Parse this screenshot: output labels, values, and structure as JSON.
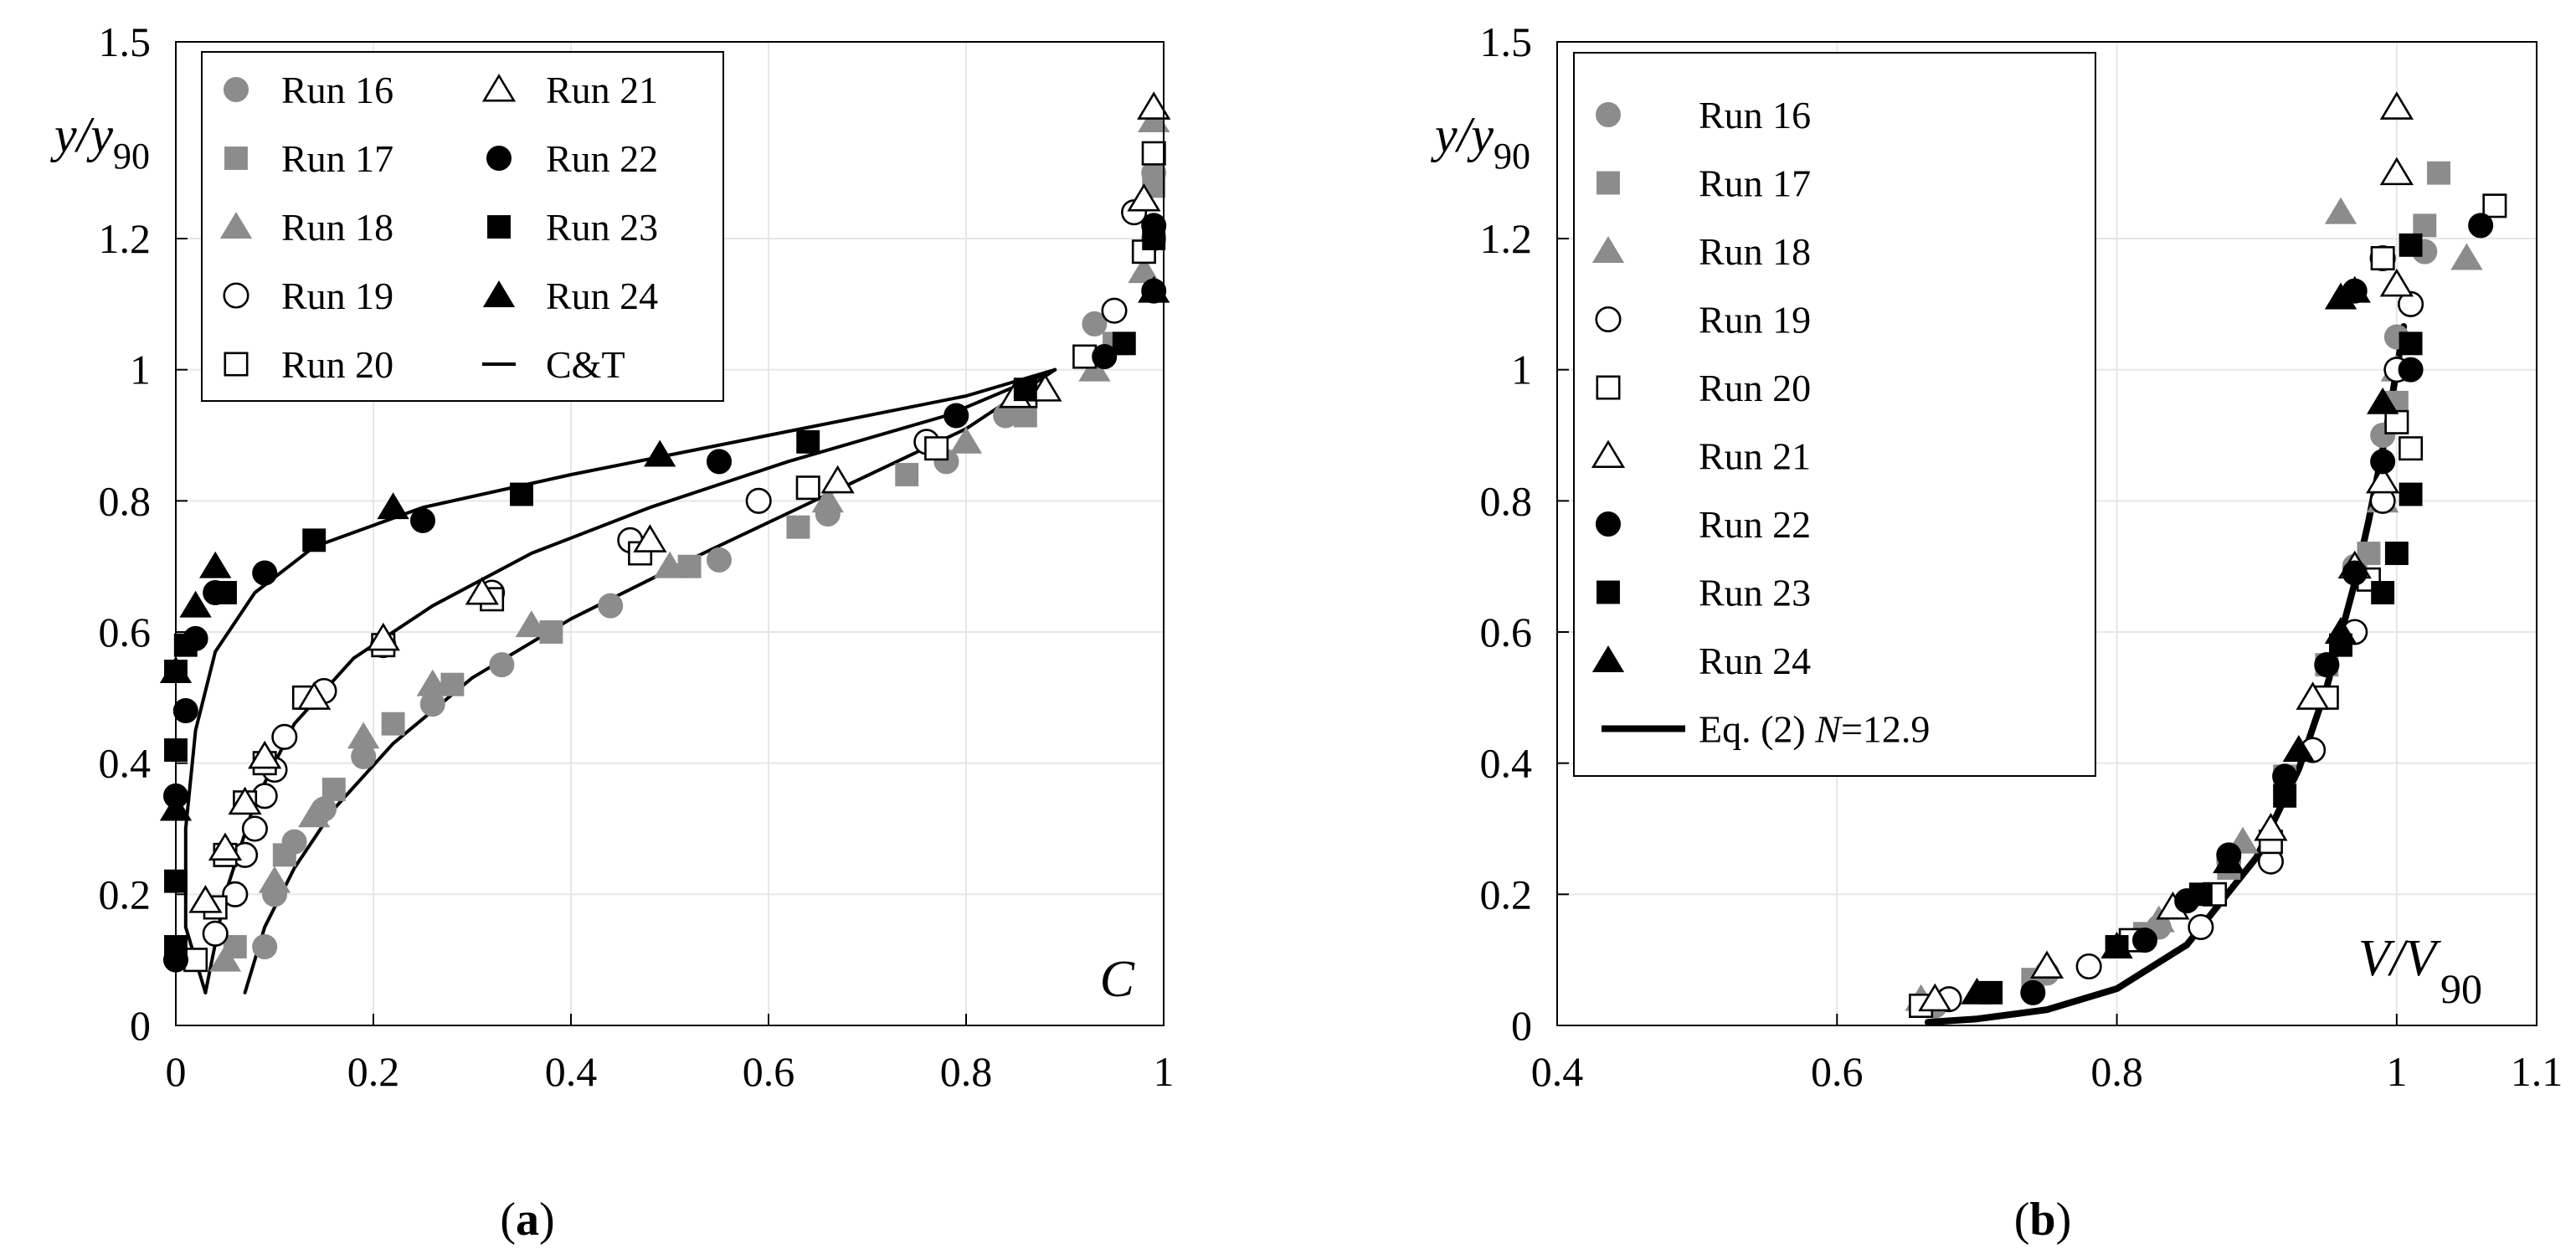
{
  "figure": {
    "panel_a_label": "a",
    "panel_b_label": "b"
  },
  "colors": {
    "gray": "#8c8c8c",
    "black": "#000000",
    "grid": "#e6e6e6"
  },
  "chart_data": [
    {
      "id": "a",
      "type": "scatter",
      "title": "",
      "xlabel": "C",
      "ylabel": "y/y90",
      "ylabel_parts": {
        "main": "y/y",
        "sub": "90"
      },
      "xlim": [
        0,
        1
      ],
      "ylim": [
        0,
        1.5
      ],
      "xticks": [
        0,
        0.2,
        0.4,
        0.6,
        0.8,
        1
      ],
      "xtick_labels": [
        "0",
        "0.2",
        "0.4",
        "0.6",
        "0.8",
        "1"
      ],
      "yticks": [
        0,
        0.2,
        0.4,
        0.6,
        0.8,
        1,
        1.2,
        1.5
      ],
      "ytick_labels": [
        "0",
        "0.2",
        "0.4",
        "0.6",
        "0.8",
        "1",
        "1.2",
        "1.5"
      ],
      "grid": true,
      "legend": {
        "position": "top-left",
        "columns": 2
      },
      "series": [
        {
          "name": "Run 16",
          "marker": "circle",
          "fill": "gray",
          "x": [
            0.09,
            0.1,
            0.12,
            0.15,
            0.19,
            0.26,
            0.33,
            0.44,
            0.55,
            0.66,
            0.78,
            0.84,
            0.93,
            0.99,
            0.99
          ],
          "y": [
            0.12,
            0.2,
            0.28,
            0.33,
            0.41,
            0.49,
            0.55,
            0.64,
            0.71,
            0.78,
            0.86,
            0.93,
            1.07,
            1.2,
            1.3
          ]
        },
        {
          "name": "Run 17",
          "marker": "square",
          "fill": "gray",
          "x": [
            0.06,
            0.11,
            0.16,
            0.22,
            0.28,
            0.38,
            0.52,
            0.63,
            0.74,
            0.86,
            0.95,
            0.99
          ],
          "y": [
            0.12,
            0.26,
            0.36,
            0.46,
            0.52,
            0.6,
            0.7,
            0.76,
            0.84,
            0.93,
            1.04,
            1.28
          ]
        },
        {
          "name": "Run 18",
          "marker": "triangle",
          "fill": "gray",
          "x": [
            0.05,
            0.1,
            0.14,
            0.19,
            0.26,
            0.36,
            0.5,
            0.66,
            0.8,
            0.93,
            0.98,
            0.99
          ],
          "y": [
            0.1,
            0.22,
            0.32,
            0.44,
            0.52,
            0.61,
            0.7,
            0.8,
            0.89,
            1.0,
            1.15,
            1.38
          ]
        },
        {
          "name": "Run 19",
          "marker": "circle",
          "fill": "none",
          "x": [
            0.04,
            0.06,
            0.07,
            0.08,
            0.09,
            0.1,
            0.11,
            0.15,
            0.21,
            0.32,
            0.46,
            0.59,
            0.76,
            0.95,
            0.97
          ],
          "y": [
            0.14,
            0.2,
            0.26,
            0.3,
            0.35,
            0.39,
            0.44,
            0.51,
            0.58,
            0.66,
            0.74,
            0.8,
            0.89,
            1.09,
            1.24
          ]
        },
        {
          "name": "Run 20",
          "marker": "square",
          "fill": "none",
          "x": [
            0.02,
            0.04,
            0.05,
            0.07,
            0.09,
            0.13,
            0.21,
            0.32,
            0.47,
            0.64,
            0.77,
            0.86,
            0.92,
            0.98,
            0.99
          ],
          "y": [
            0.1,
            0.18,
            0.26,
            0.34,
            0.4,
            0.5,
            0.58,
            0.65,
            0.72,
            0.82,
            0.88,
            0.96,
            1.02,
            1.18,
            1.33
          ]
        },
        {
          "name": "Run 21",
          "marker": "triangle",
          "fill": "none",
          "x": [
            0.03,
            0.05,
            0.07,
            0.09,
            0.14,
            0.21,
            0.31,
            0.48,
            0.67,
            0.85,
            0.88,
            0.98,
            0.99
          ],
          "y": [
            0.19,
            0.27,
            0.34,
            0.41,
            0.5,
            0.59,
            0.66,
            0.74,
            0.83,
            0.96,
            0.97,
            1.26,
            1.4
          ]
        },
        {
          "name": "Run 22",
          "marker": "circle",
          "fill": "black",
          "x": [
            0.0,
            0.0,
            0.01,
            0.02,
            0.04,
            0.09,
            0.25,
            0.55,
            0.79,
            0.94,
            0.99,
            0.99
          ],
          "y": [
            0.1,
            0.35,
            0.48,
            0.59,
            0.66,
            0.69,
            0.77,
            0.86,
            0.93,
            1.02,
            1.12,
            1.22
          ]
        },
        {
          "name": "Run 23",
          "marker": "square",
          "fill": "black",
          "x": [
            0.0,
            0.0,
            0.0,
            0.0,
            0.01,
            0.05,
            0.14,
            0.35,
            0.64,
            0.86,
            0.96,
            0.99
          ],
          "y": [
            0.12,
            0.22,
            0.42,
            0.54,
            0.58,
            0.66,
            0.74,
            0.81,
            0.89,
            0.97,
            1.04,
            1.2
          ]
        },
        {
          "name": "Run 24",
          "marker": "triangle",
          "fill": "black",
          "x": [
            0.0,
            0.0,
            0.02,
            0.04,
            0.22,
            0.49,
            0.99
          ],
          "y": [
            0.33,
            0.54,
            0.64,
            0.7,
            0.79,
            0.87,
            1.12
          ]
        },
        {
          "name": "C&T",
          "type": "line",
          "curves": [
            {
              "x": [
                0.03,
                0.01,
                0.01,
                0.02,
                0.04,
                0.08,
                0.14,
                0.25,
                0.4,
                0.6,
                0.8,
                0.89
              ],
              "y": [
                0.05,
                0.15,
                0.3,
                0.45,
                0.57,
                0.66,
                0.73,
                0.79,
                0.84,
                0.9,
                0.96,
                1.0
              ]
            },
            {
              "x": [
                0.03,
                0.05,
                0.08,
                0.12,
                0.18,
                0.26,
                0.36,
                0.48,
                0.62,
                0.78,
                0.89
              ],
              "y": [
                0.05,
                0.2,
                0.34,
                0.46,
                0.56,
                0.64,
                0.72,
                0.79,
                0.86,
                0.93,
                1.0
              ]
            },
            {
              "x": [
                0.07,
                0.09,
                0.12,
                0.16,
                0.22,
                0.3,
                0.4,
                0.52,
                0.66,
                0.8,
                0.89
              ],
              "y": [
                0.05,
                0.15,
                0.24,
                0.33,
                0.43,
                0.53,
                0.62,
                0.71,
                0.81,
                0.91,
                1.0
              ]
            }
          ]
        }
      ]
    },
    {
      "id": "b",
      "type": "scatter",
      "title": "",
      "xlabel": "V/V90",
      "xlabel_parts": {
        "main": "V/V",
        "sub": "90"
      },
      "ylabel": "y/y90",
      "ylabel_parts": {
        "main": "y/y",
        "sub": "90"
      },
      "xlim": [
        0.4,
        1.1
      ],
      "ylim": [
        0,
        1.5
      ],
      "xticks": [
        0.4,
        0.6,
        0.8,
        1,
        1.1
      ],
      "xtick_labels": [
        "0.4",
        "0.6",
        "0.8",
        "1",
        "1.1"
      ],
      "yticks": [
        0,
        0.2,
        0.4,
        0.6,
        0.8,
        1,
        1.2,
        1.5
      ],
      "ytick_labels": [
        "0",
        "0.2",
        "0.4",
        "0.6",
        "0.8",
        "1",
        "1.2",
        "1.5"
      ],
      "grid": true,
      "legend": {
        "position": "top-left",
        "columns": 1
      },
      "series": [
        {
          "name": "Run 16",
          "marker": "circle",
          "fill": "gray",
          "x": [
            0.67,
            0.75,
            0.83,
            0.88,
            0.92,
            0.95,
            0.97,
            0.99,
            1.0,
            1.02
          ],
          "y": [
            0.03,
            0.08,
            0.15,
            0.25,
            0.38,
            0.55,
            0.7,
            0.9,
            1.05,
            1.18
          ]
        },
        {
          "name": "Run 17",
          "marker": "square",
          "fill": "gray",
          "x": [
            0.66,
            0.74,
            0.82,
            0.88,
            0.92,
            0.95,
            0.98,
            1.0,
            1.02,
            1.03
          ],
          "y": [
            0.03,
            0.07,
            0.14,
            0.24,
            0.38,
            0.55,
            0.72,
            0.95,
            1.22,
            1.3
          ]
        },
        {
          "name": "Run 18",
          "marker": "triangle",
          "fill": "gray",
          "x": [
            0.66,
            0.75,
            0.83,
            0.89,
            0.93,
            0.96,
            0.99,
            1.0,
            0.96,
            1.05
          ],
          "y": [
            0.04,
            0.09,
            0.16,
            0.28,
            0.42,
            0.6,
            0.8,
            1.0,
            1.24,
            1.17
          ]
        },
        {
          "name": "Run 19",
          "marker": "circle",
          "fill": "none",
          "x": [
            0.68,
            0.78,
            0.86,
            0.91,
            0.94,
            0.97,
            0.99,
            1.0,
            1.01,
            0.99
          ],
          "y": [
            0.04,
            0.09,
            0.15,
            0.25,
            0.42,
            0.6,
            0.8,
            1.0,
            1.1,
            1.17
          ]
        },
        {
          "name": "Run 20",
          "marker": "square",
          "fill": "none",
          "x": [
            0.66,
            0.81,
            0.87,
            0.91,
            0.95,
            0.98,
            1.0,
            1.01,
            0.99,
            1.07
          ],
          "y": [
            0.03,
            0.13,
            0.2,
            0.28,
            0.5,
            0.68,
            0.92,
            0.88,
            1.17,
            1.25
          ]
        },
        {
          "name": "Run 21",
          "marker": "triangle",
          "fill": "none",
          "x": [
            0.67,
            0.75,
            0.84,
            0.91,
            0.94,
            0.97,
            0.99,
            1.0,
            1.0,
            1.0
          ],
          "y": [
            0.04,
            0.09,
            0.18,
            0.3,
            0.5,
            0.7,
            0.83,
            1.13,
            1.3,
            1.4
          ]
        },
        {
          "name": "Run 22",
          "marker": "circle",
          "fill": "black",
          "x": [
            0.74,
            0.82,
            0.85,
            0.88,
            0.92,
            0.95,
            0.97,
            0.99,
            1.01,
            0.97,
            1.06
          ],
          "y": [
            0.05,
            0.13,
            0.19,
            0.26,
            0.38,
            0.55,
            0.69,
            0.86,
            1.0,
            1.12,
            1.22
          ]
        },
        {
          "name": "Run 23",
          "marker": "square",
          "fill": "black",
          "x": [
            0.71,
            0.8,
            0.86,
            0.92,
            0.96,
            0.99,
            1.0,
            1.01,
            1.01,
            1.01
          ],
          "y": [
            0.05,
            0.12,
            0.2,
            0.35,
            0.58,
            0.66,
            0.72,
            0.81,
            1.04,
            1.19
          ]
        },
        {
          "name": "Run 24",
          "marker": "triangle",
          "fill": "black",
          "x": [
            0.7,
            0.8,
            0.88,
            0.93,
            0.96,
            0.99,
            0.96,
            0.97
          ],
          "y": [
            0.05,
            0.12,
            0.25,
            0.42,
            0.6,
            0.95,
            1.11,
            1.12
          ]
        },
        {
          "name": "Eq. (2) N=12.9",
          "type": "line",
          "equation": "y = x^12.9",
          "x": [
            0.665,
            0.7,
            0.75,
            0.8,
            0.85,
            0.9,
            0.93,
            0.95,
            0.97,
            0.98,
            0.99,
            1.0,
            1.005
          ],
          "y": [
            0.005,
            0.01,
            0.024,
            0.056,
            0.123,
            0.257,
            0.391,
            0.516,
            0.675,
            0.77,
            0.878,
            1.0,
            1.066
          ]
        }
      ],
      "legend_line_label_parts": {
        "prefix": "Eq. (2) ",
        "var": "N",
        "suffix": "=12.9"
      }
    }
  ]
}
